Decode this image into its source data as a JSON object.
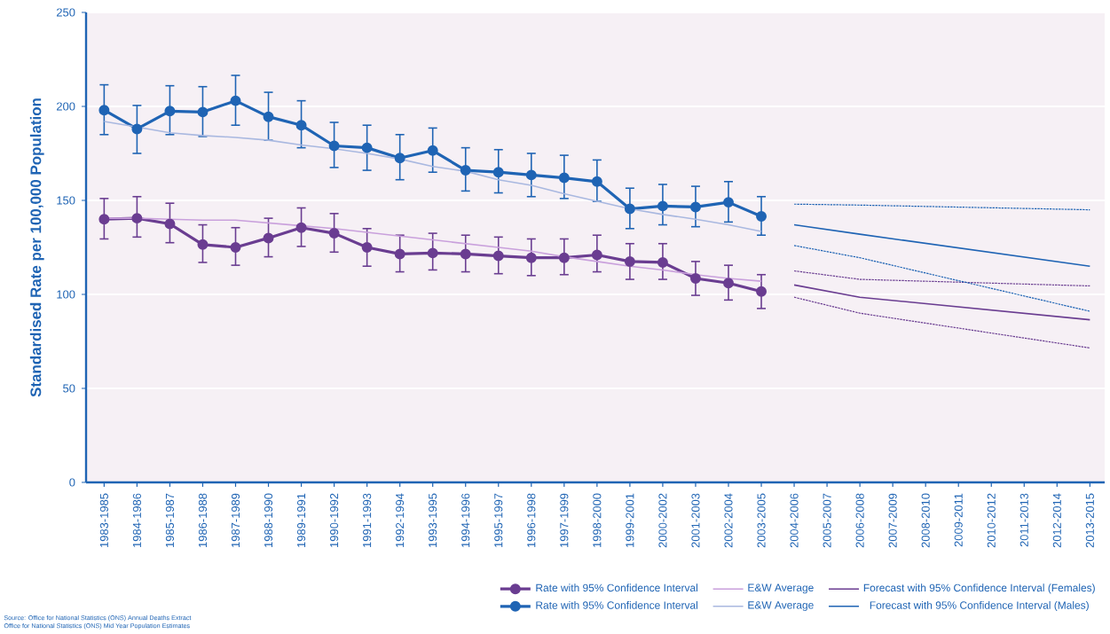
{
  "chart_data": {
    "type": "line",
    "ylabel": "Standardised Rate per 100,000 Population",
    "categories": [
      "1983-1985",
      "1984-1986",
      "1985-1987",
      "1986-1988",
      "1987-1989",
      "1988-1990",
      "1989-1991",
      "1990-1992",
      "1991-1993",
      "1992-1994",
      "1993-1995",
      "1994-1996",
      "1995-1997",
      "1996-1998",
      "1997-1999",
      "1998-2000",
      "1999-2001",
      "2000-2002",
      "2001-2003",
      "2002-2004",
      "2003-2005",
      "2004-2006",
      "2005-2007",
      "2006-2008",
      "2007-2009",
      "2008-2010",
      "2009-2011",
      "2010-2012",
      "2011-2013",
      "2012-2014",
      "2013-2015"
    ],
    "ylim": [
      0,
      250
    ],
    "yticks": [
      0,
      50,
      100,
      150,
      200,
      250
    ],
    "grid": "y",
    "legend": "bottom",
    "series": [
      {
        "name": "Rate with 95% Confidence Interval",
        "color": "#6a3d91",
        "marker": "circle",
        "line_style": "solid",
        "values": [
          140,
          140.5,
          137.5,
          126.5,
          125,
          130,
          135.5,
          132.5,
          125,
          121.5,
          122,
          121.5,
          120.5,
          119.5,
          119.5,
          121,
          117.5,
          117,
          108.5,
          106,
          101.5,
          null,
          null,
          null,
          null,
          null,
          null,
          null,
          null,
          null,
          null
        ],
        "errors": [
          [
            129.5,
            151
          ],
          [
            130.5,
            152
          ],
          [
            127.5,
            148.5
          ],
          [
            117,
            137
          ],
          [
            115.5,
            135.5
          ],
          [
            120,
            140.5
          ],
          [
            125.5,
            146
          ],
          [
            122.5,
            143
          ],
          [
            115,
            135
          ],
          [
            112,
            131.5
          ],
          [
            113,
            132.5
          ],
          [
            112,
            131.5
          ],
          [
            111,
            130.5
          ],
          [
            110,
            129.5
          ],
          [
            110.5,
            129.5
          ],
          [
            112,
            131.5
          ],
          [
            108,
            127
          ],
          [
            108,
            127
          ],
          [
            99.5,
            117.5
          ],
          [
            97,
            115.5
          ],
          [
            92.5,
            110.5
          ],
          null,
          null,
          null,
          null,
          null,
          null,
          null,
          null,
          null,
          null
        ]
      },
      {
        "name": "E&W Average",
        "color": "#c9a0dc",
        "marker": "none",
        "line_style": "solid",
        "values": [
          140.5,
          140.5,
          140,
          139.5,
          139.5,
          138,
          136.5,
          135,
          133,
          131,
          129,
          127,
          125,
          123,
          120,
          117.5,
          115,
          113,
          110.5,
          108.5,
          107,
          null,
          null,
          null,
          null,
          null,
          null,
          null,
          null,
          null,
          null
        ]
      },
      {
        "name": "Forecast with 95% Confidence Interval  (Females)",
        "color": "#6a3d91",
        "marker": "none",
        "line_style": "solid",
        "values": [
          null,
          null,
          null,
          null,
          null,
          null,
          null,
          null,
          null,
          null,
          null,
          null,
          null,
          null,
          null,
          null,
          null,
          null,
          null,
          null,
          null,
          105,
          null,
          98.5,
          null,
          null,
          null,
          null,
          null,
          null,
          86.5
        ]
      },
      {
        "name": "Rate with 95% Confidence Interval",
        "color": "#1f64b4",
        "marker": "circle",
        "line_style": "solid",
        "values": [
          198,
          188,
          197.5,
          197,
          203,
          194.5,
          190,
          179,
          178,
          172.5,
          176.5,
          166,
          165,
          163.5,
          162,
          160,
          145.5,
          147,
          146.5,
          149,
          141.5,
          null,
          null,
          null,
          null,
          null,
          null,
          null,
          null,
          null,
          null
        ],
        "errors": [
          [
            185,
            211.5
          ],
          [
            175,
            200.5
          ],
          [
            185,
            211
          ],
          [
            184,
            210.5
          ],
          [
            190,
            216.5
          ],
          [
            182,
            207.5
          ],
          [
            178,
            203
          ],
          [
            167.5,
            191.5
          ],
          [
            166,
            190
          ],
          [
            161,
            185
          ],
          [
            165,
            188.5
          ],
          [
            155,
            178
          ],
          [
            154,
            177
          ],
          [
            152,
            175
          ],
          [
            151,
            174
          ],
          [
            149.5,
            171.5
          ],
          [
            135,
            156.5
          ],
          [
            137,
            158.5
          ],
          [
            136,
            157.5
          ],
          [
            138.5,
            160
          ],
          [
            131.5,
            152
          ],
          null,
          null,
          null,
          null,
          null,
          null,
          null,
          null,
          null,
          null
        ]
      },
      {
        "name": "E&W Average",
        "color": "#a9b8e0",
        "marker": "none",
        "line_style": "solid",
        "values": [
          192,
          189,
          186,
          184.5,
          183.5,
          182,
          179.5,
          177.5,
          175,
          172,
          168,
          165.5,
          161,
          158,
          153.5,
          149.5,
          145.5,
          142.5,
          140,
          137,
          133.5,
          null,
          null,
          null,
          null,
          null,
          null,
          null,
          null,
          null,
          null
        ]
      },
      {
        "name": "Forecast with 95% Confidence Interval  (Males)",
        "color": "#1f64b4",
        "marker": "none",
        "line_style": "solid",
        "values": [
          null,
          null,
          null,
          null,
          null,
          null,
          null,
          null,
          null,
          null,
          null,
          null,
          null,
          null,
          null,
          null,
          null,
          null,
          null,
          null,
          null,
          137,
          null,
          132,
          null,
          null,
          null,
          null,
          null,
          null,
          115
        ]
      },
      {
        "color": "#6a3d91",
        "marker": "none",
        "line_style": "dotted",
        "values": [
          null,
          null,
          null,
          null,
          null,
          null,
          null,
          null,
          null,
          null,
          null,
          null,
          null,
          null,
          null,
          null,
          null,
          null,
          null,
          null,
          null,
          112.5,
          null,
          108,
          null,
          null,
          null,
          null,
          null,
          null,
          104.5
        ]
      },
      {
        "color": "#6a3d91",
        "marker": "none",
        "line_style": "dotted",
        "values": [
          null,
          null,
          null,
          null,
          null,
          null,
          null,
          null,
          null,
          null,
          null,
          null,
          null,
          null,
          null,
          null,
          null,
          null,
          null,
          null,
          null,
          98.5,
          null,
          90,
          null,
          null,
          null,
          null,
          null,
          null,
          71.5
        ]
      },
      {
        "color": "#1f64b4",
        "marker": "none",
        "line_style": "dotted",
        "values": [
          null,
          null,
          null,
          null,
          null,
          null,
          null,
          null,
          null,
          null,
          null,
          null,
          null,
          null,
          null,
          null,
          null,
          null,
          null,
          null,
          null,
          148,
          null,
          147.5,
          null,
          null,
          null,
          null,
          null,
          null,
          145
        ]
      },
      {
        "color": "#1f64b4",
        "marker": "none",
        "line_style": "dotted",
        "values": [
          null,
          null,
          null,
          null,
          null,
          null,
          null,
          null,
          null,
          null,
          null,
          null,
          null,
          null,
          null,
          null,
          null,
          null,
          null,
          null,
          null,
          126,
          null,
          119.5,
          null,
          null,
          null,
          null,
          null,
          null,
          91
        ]
      }
    ],
    "annotations": [
      "Source: Office for National Statistics (ONS) Annual Deaths Extract",
      "Office for National Statistics (ONS) Mid Year Population Estimates"
    ]
  }
}
